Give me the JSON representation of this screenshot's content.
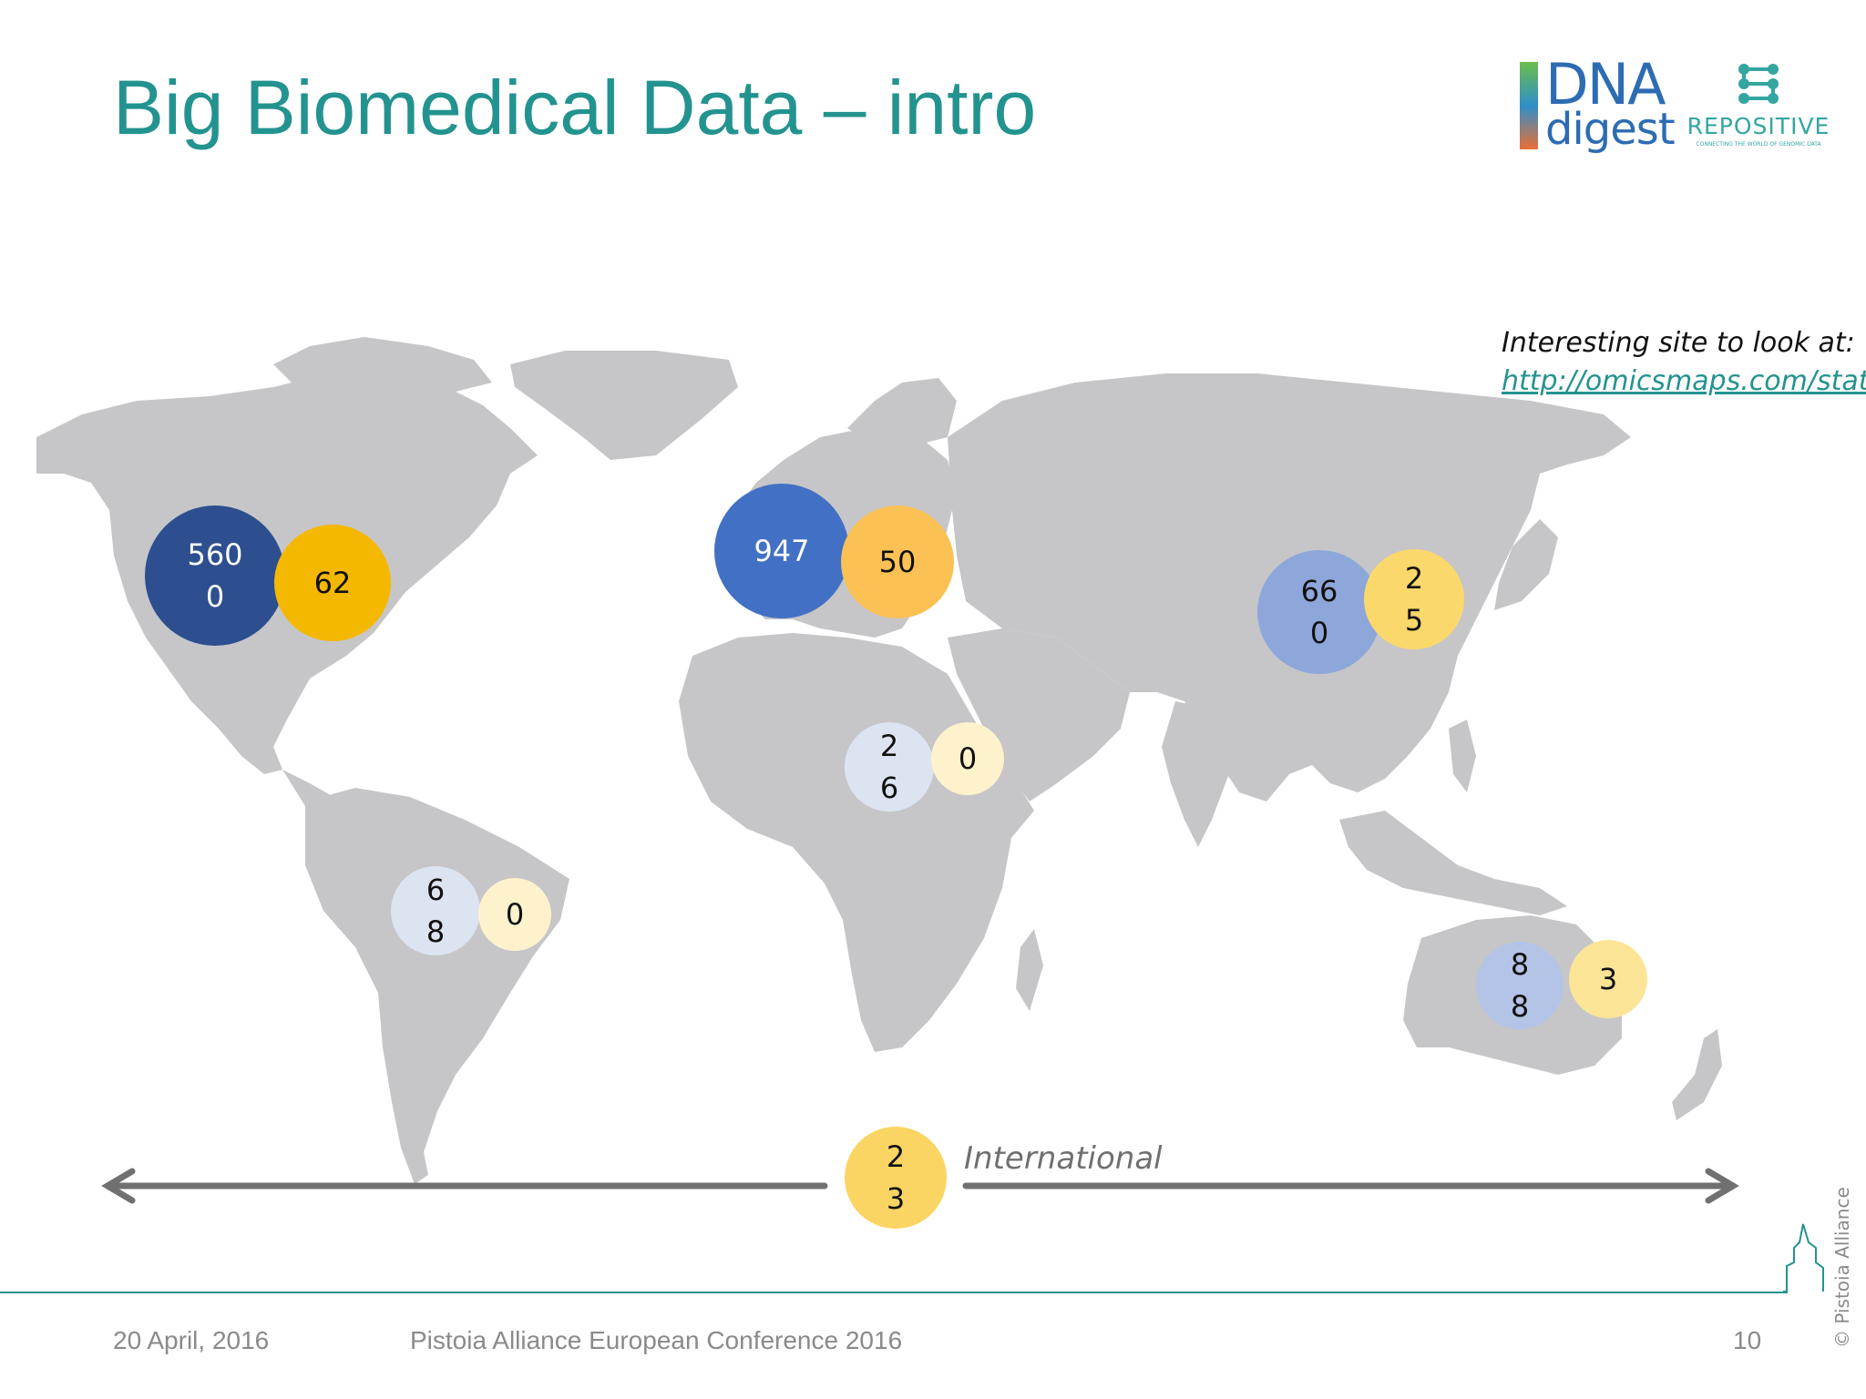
{
  "slide": {
    "title": "Big Biomedical Data – intro",
    "note_line1": "Interesting site to look at:",
    "note_link": "http://omicsmaps.com/stats"
  },
  "logos": {
    "dna": "DNA",
    "digest": "digest",
    "repositive": "REPOSITIVE",
    "repositive_tagline": "CONNECTING THE WORLD OF GENOMIC DATA"
  },
  "colors": {
    "title": "#23938f",
    "land": "#c6c6c8",
    "arrow": "#707070"
  },
  "regions": [
    {
      "name": "north-america",
      "value_a_lines": [
        "560",
        "0"
      ],
      "value_b_lines": [
        "62"
      ],
      "color_a": "#2d4f8f",
      "color_b": "#f5b800"
    },
    {
      "name": "europe",
      "value_a_lines": [
        "947"
      ],
      "value_b_lines": [
        "50"
      ],
      "color_a": "#4270c4",
      "color_b": "#fcc155"
    },
    {
      "name": "east-asia",
      "value_a_lines": [
        "66",
        "0"
      ],
      "value_b_lines": [
        "2",
        "5"
      ],
      "color_a": "#8ea7da",
      "color_b": "#fbd86b"
    },
    {
      "name": "africa",
      "value_a_lines": [
        "2",
        "6"
      ],
      "value_b_lines": [
        "0"
      ],
      "color_a": "#dde4f1",
      "color_b": "#fdf2cc"
    },
    {
      "name": "south-america",
      "value_a_lines": [
        "6",
        "8"
      ],
      "value_b_lines": [
        "0"
      ],
      "color_a": "#dde4f1",
      "color_b": "#fdf2cc"
    },
    {
      "name": "australia",
      "value_a_lines": [
        "8",
        "8"
      ],
      "value_b_lines": [
        "3"
      ],
      "color_a": "#b4c4e6",
      "color_b": "#fde597"
    },
    {
      "name": "international",
      "value_b_lines": [
        "2",
        "3"
      ],
      "color_b": "#fbd563",
      "label": "International"
    }
  ],
  "footer": {
    "date": "20 April, 2016",
    "conference": "Pistoia Alliance European Conference 2016",
    "page": "10",
    "copyright": "© Pistoia Alliance"
  }
}
